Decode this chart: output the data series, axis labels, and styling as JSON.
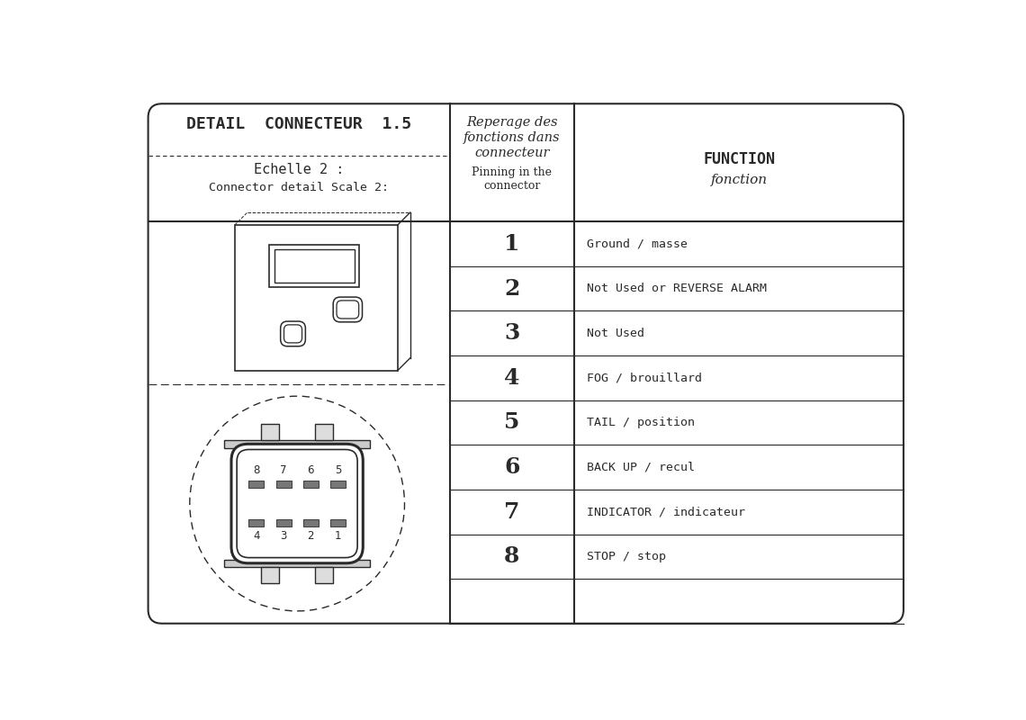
{
  "title": "DETAIL  CONNECTEUR  1.5",
  "subtitle1": "Echelle 2 :",
  "subtitle2": "Connector detail Scale 2:",
  "col2_header1": "Reperage des",
  "col2_header2": "fonctions dans",
  "col2_header3": "connecteur",
  "col2_header4": "Pinning in the",
  "col2_header5": "connector",
  "col3_header1": "FUNCTION",
  "col3_header2": "fonction",
  "pins": [
    1,
    2,
    3,
    4,
    5,
    6,
    7,
    8
  ],
  "functions": [
    "Ground / masse",
    "Not Used or REVERSE ALARM",
    "Not Used",
    "FOG / brouillard",
    "TAIL / position",
    "BACK UP / recul",
    "INDICATOR / indicateur",
    "STOP / stop"
  ],
  "bg_color": "#ffffff",
  "line_color": "#2a2a2a",
  "fig_width": 11.4,
  "fig_height": 8.0
}
